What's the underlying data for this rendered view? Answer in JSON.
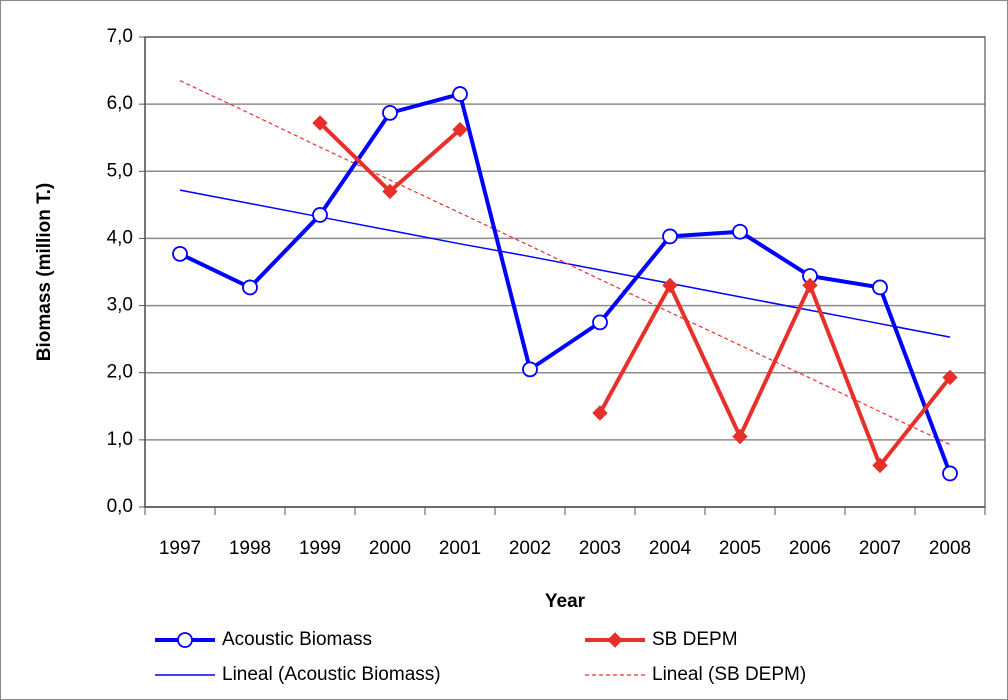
{
  "chart_data": {
    "type": "line",
    "x_label": "Year",
    "y_label": "Biomass (million T.)",
    "categories": [
      "1997",
      "1998",
      "1999",
      "2000",
      "2001",
      "2002",
      "2003",
      "2004",
      "2005",
      "2006",
      "2007",
      "2008"
    ],
    "ylim": [
      0,
      7
    ],
    "yticks": [
      {
        "value": 0,
        "label": "0,0"
      },
      {
        "value": 1,
        "label": "1,0"
      },
      {
        "value": 2,
        "label": "2,0"
      },
      {
        "value": 3,
        "label": "3,0"
      },
      {
        "value": 4,
        "label": "4,0"
      },
      {
        "value": 5,
        "label": "5,0"
      },
      {
        "value": 6,
        "label": "6,0"
      },
      {
        "value": 7,
        "label": "7,0"
      }
    ],
    "grid": true,
    "legend": "bottom",
    "series": [
      {
        "name": "Acoustic Biomass",
        "color": "#0000ff",
        "width": 4,
        "marker": "circle",
        "values": [
          3.77,
          3.27,
          4.35,
          5.87,
          6.15,
          2.05,
          2.75,
          4.03,
          4.1,
          3.44,
          3.27,
          0.5
        ]
      },
      {
        "name": "SB DEPM",
        "color": "#e8302a",
        "width": 4,
        "marker": "diamond",
        "values": [
          null,
          null,
          5.72,
          4.7,
          5.62,
          null,
          1.4,
          3.3,
          1.05,
          3.3,
          0.62,
          1.93
        ]
      },
      {
        "name": "Lineal (Acoustic Biomass)",
        "color": "#0000ff",
        "width": 1.5,
        "values": [
          4.72,
          4.52,
          4.32,
          4.12,
          3.92,
          3.73,
          3.53,
          3.33,
          3.13,
          2.93,
          2.73,
          2.53
        ]
      },
      {
        "name": "Lineal (SB DEPM)",
        "color": "#e8302a",
        "width": 1.2,
        "dash": true,
        "values": [
          6.35,
          5.86,
          5.36,
          4.87,
          4.38,
          3.89,
          3.39,
          2.9,
          2.41,
          1.92,
          1.42,
          0.93
        ]
      }
    ]
  }
}
